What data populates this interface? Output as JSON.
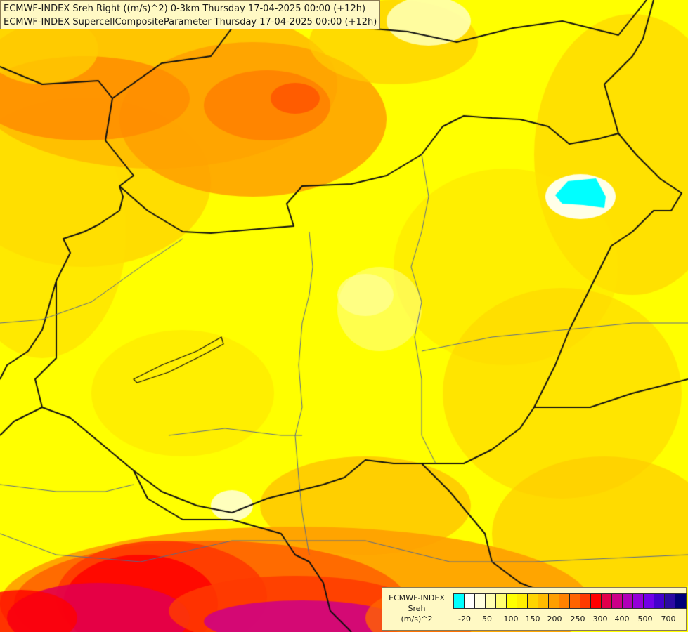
{
  "title": {
    "line1": "ECMWF-INDEX Sreh Right ((m/s)^2) 0-3km Thursday 17-04-2025 00:00 (+12h)",
    "line2": "ECMWF-INDEX SupercellCompositeParameter Thursday 17-04-2025 00:00 (+12h)"
  },
  "legend": {
    "source": "ECMWF-INDEX",
    "field": "Sreh",
    "unit": "(m/s)^2",
    "tick_labels": [
      "-20",
      "50",
      "100",
      "150",
      "200",
      "250",
      "300",
      "400",
      "500",
      "700"
    ],
    "colors": [
      "#00ffff",
      "#ffffff",
      "#ffffe0",
      "#ffffb0",
      "#ffff70",
      "#ffff00",
      "#ffee00",
      "#ffd400",
      "#ffbb00",
      "#ff9f00",
      "#ff8200",
      "#ff6400",
      "#ff3a00",
      "#ff0000",
      "#e2004c",
      "#cc0088",
      "#b000b8",
      "#9400d8",
      "#7200e8",
      "#4400cc",
      "#2c0aa2",
      "#000078"
    ]
  }
}
